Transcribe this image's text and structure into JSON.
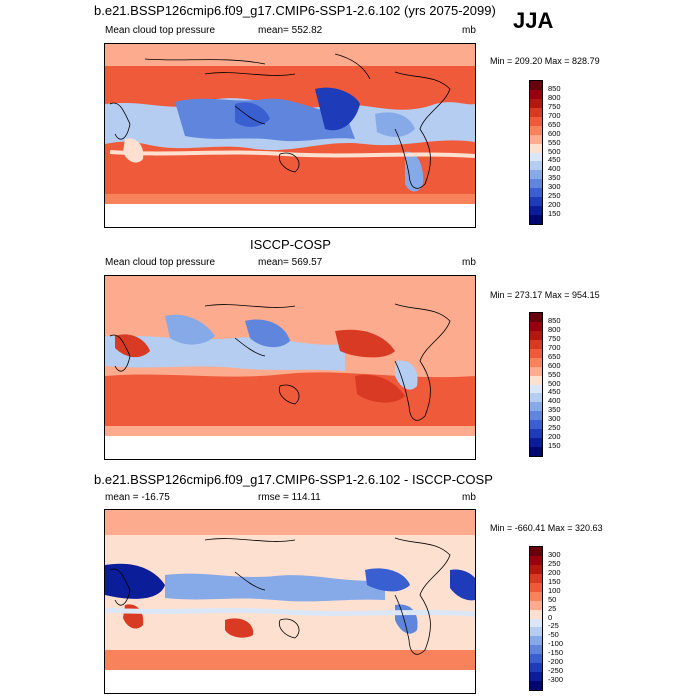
{
  "season": "JJA",
  "panels": [
    {
      "title": "b.e21.BSSP126cmip6.f09_g17.CMIP6-SSP1-2.6.102 (yrs 2075-2099)",
      "left_label": "Mean cloud top pressure",
      "center_label": "mean= 552.82",
      "units": "mb",
      "minmax": "Min = 209.20 Max = 828.79",
      "colorbar": {
        "levels": [
          "850",
          "800",
          "750",
          "700",
          "650",
          "600",
          "550",
          "500",
          "450",
          "400",
          "350",
          "300",
          "250",
          "200",
          "150"
        ],
        "colors": [
          "#67000d",
          "#99000d",
          "#b3180f",
          "#d93a24",
          "#ef5a3a",
          "#f7825c",
          "#fcab8e",
          "#fde0cf",
          "#dbe7f6",
          "#b4cdf0",
          "#86a9e8",
          "#5f86dc",
          "#3a5fd0",
          "#1e3cba",
          "#0b1d99",
          "#000870"
        ]
      }
    },
    {
      "title": "ISCCP-COSP",
      "left_label": "Mean cloud top pressure",
      "center_label": "mean= 569.57",
      "units": "mb",
      "minmax": "Min = 273.17 Max = 954.15",
      "colorbar": {
        "levels": [
          "850",
          "800",
          "750",
          "700",
          "650",
          "600",
          "550",
          "500",
          "450",
          "400",
          "350",
          "300",
          "250",
          "200",
          "150"
        ],
        "colors": [
          "#67000d",
          "#99000d",
          "#b3180f",
          "#d93a24",
          "#ef5a3a",
          "#f7825c",
          "#fcab8e",
          "#fde0cf",
          "#dbe7f6",
          "#b4cdf0",
          "#86a9e8",
          "#5f86dc",
          "#3a5fd0",
          "#1e3cba",
          "#0b1d99",
          "#000870"
        ]
      }
    },
    {
      "title": "b.e21.BSSP126cmip6.f09_g17.CMIP6-SSP1-2.6.102 - ISCCP-COSP",
      "left_label": "mean = -16.75",
      "center_label": "rmse = 114.11",
      "units": "mb",
      "minmax": "Min = -660.41 Max = 320.63",
      "colorbar": {
        "levels": [
          "300",
          "250",
          "200",
          "150",
          "100",
          "50",
          "25",
          "0",
          "-25",
          "-50",
          "-100",
          "-150",
          "-200",
          "-250",
          "-300"
        ],
        "colors": [
          "#67000d",
          "#99000d",
          "#b3180f",
          "#d93a24",
          "#ef5a3a",
          "#f7825c",
          "#fcab8e",
          "#fde0cf",
          "#dbe7f6",
          "#b4cdf0",
          "#86a9e8",
          "#5f86dc",
          "#3a5fd0",
          "#1e3cba",
          "#0b1d99",
          "#000870"
        ]
      }
    }
  ]
}
